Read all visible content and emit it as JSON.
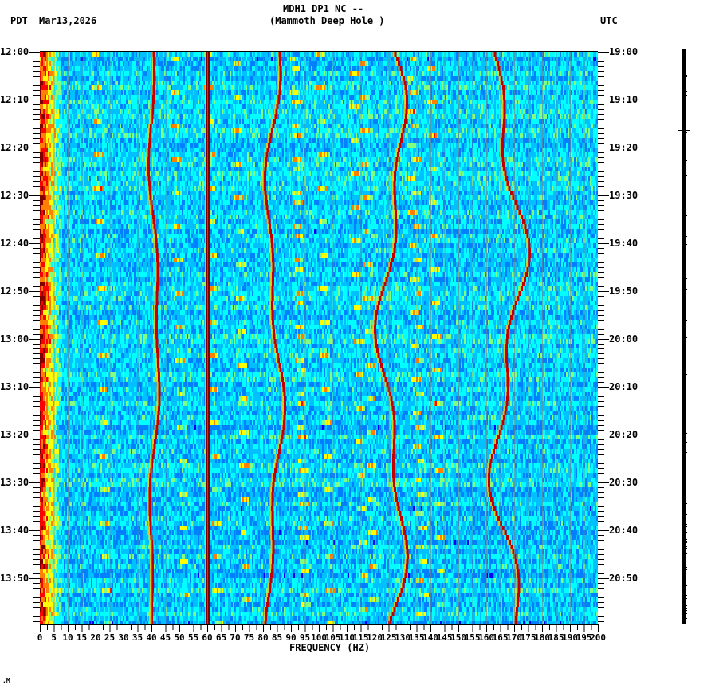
{
  "header": {
    "station_line": "MDH1 DP1 NC --",
    "site_line": "(Mammoth Deep Hole )",
    "left_timezone": "PDT",
    "date": "Mar13,2026",
    "right_timezone": "UTC"
  },
  "footer": {
    "mark": ".M"
  },
  "chart_data": {
    "type": "heatmap",
    "title": "MDH1 DP1 NC -- (Mammoth Deep Hole )",
    "xlabel": "FREQUENCY (HZ)",
    "ylabel_left": "PDT",
    "ylabel_right": "UTC",
    "date": "Mar13,2026",
    "xlim": [
      0,
      200
    ],
    "x_ticks": [
      0,
      5,
      10,
      15,
      20,
      25,
      30,
      35,
      40,
      45,
      50,
      55,
      60,
      65,
      70,
      75,
      80,
      85,
      90,
      95,
      100,
      105,
      110,
      115,
      120,
      125,
      130,
      135,
      140,
      145,
      150,
      155,
      160,
      165,
      170,
      175,
      180,
      185,
      190,
      195,
      200
    ],
    "x_tick_labels": [
      "0",
      "5",
      "10",
      "15",
      "20",
      "25",
      "30",
      "35",
      "40",
      "45",
      "50",
      "55",
      "60",
      "65",
      "70",
      "75",
      "80",
      "85",
      "90",
      "95",
      "100",
      "105",
      "110",
      "115",
      "120",
      "125",
      "130",
      "135",
      "140",
      "145",
      "150",
      "155",
      "160",
      "165",
      "170",
      "175",
      "180",
      "185",
      "190",
      "195",
      "200"
    ],
    "y_ticks_left": [
      "12:00",
      "12:10",
      "12:20",
      "12:30",
      "12:40",
      "12:50",
      "13:00",
      "13:10",
      "13:20",
      "13:30",
      "13:40",
      "13:50"
    ],
    "y_ticks_right": [
      "19:00",
      "19:10",
      "19:20",
      "19:30",
      "19:40",
      "19:50",
      "20:00",
      "20:10",
      "20:20",
      "20:30",
      "20:40",
      "20:50"
    ],
    "y_range_minutes": [
      0,
      120
    ],
    "minor_tick_interval_minutes": 1,
    "grid": "vertical lines every 5 Hz",
    "colormap": [
      "#0000ff",
      "#0080ff",
      "#00c0ff",
      "#00ffff",
      "#80ff80",
      "#ffff00",
      "#ff8000",
      "#ff0000",
      "#800000"
    ],
    "background_level_color": "#20b0f0",
    "features": [
      {
        "name": "low-frequency energy",
        "freq_hz": [
          0,
          3
        ],
        "intensity": "high"
      },
      {
        "name": "tonal line ~41 Hz",
        "freq_hz": 41,
        "intensity": "high",
        "wander_hz": 1.5
      },
      {
        "name": "power line 60 Hz",
        "freq_hz": 60,
        "intensity": "very high",
        "wander_hz": 0
      },
      {
        "name": "tonal line ~84 Hz",
        "freq_hz": 84,
        "intensity": "high",
        "wander_hz": 2.5
      },
      {
        "name": "tonal line ~126 Hz",
        "freq_hz": 126,
        "intensity": "high",
        "wander_hz": 4
      },
      {
        "name": "tonal line ~168 Hz",
        "freq_hz": 168,
        "intensity": "medium-high",
        "wander_hz": 5
      },
      {
        "name": "repeating curved chirps",
        "period_minutes": 7,
        "freq_range_hz": [
          20,
          145
        ],
        "intensity": "medium"
      }
    ],
    "trace_panel": {
      "description": "vertical black seismic trace at right",
      "x": 858
    }
  }
}
